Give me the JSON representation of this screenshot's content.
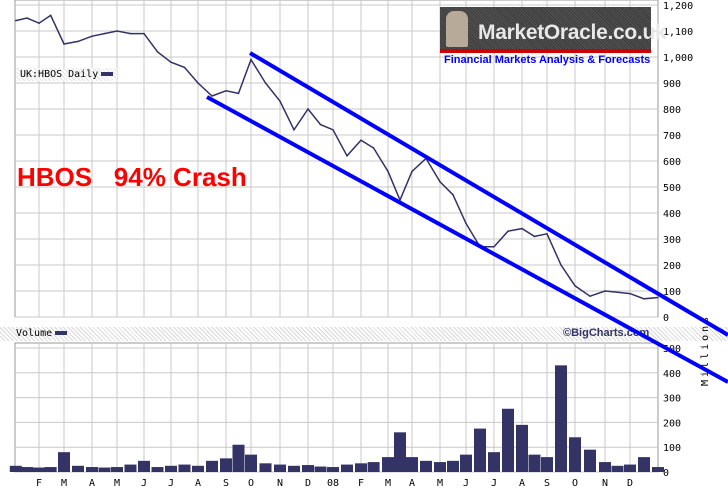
{
  "headline": "HBOS   94% Crash",
  "logo": {
    "name": "MarketOracle.co.uk",
    "tagline": "Financial Markets Analysis & Forecasts"
  },
  "credit": "©BigCharts.com",
  "colors": {
    "price_line": "#333366",
    "volume_bars": "#333366",
    "channel_lines": "#0000ff",
    "headline": "#ff0000",
    "grid": "#c8c8c8"
  },
  "chart_data": [
    {
      "type": "line",
      "legend": "UK:HBOS Daily",
      "y_ticks": [
        "1,200",
        "1,100",
        "1,000",
        "900",
        "800",
        "700",
        "600",
        "500",
        "400",
        "300",
        "200",
        "100",
        "0"
      ],
      "ylim": [
        0,
        1200
      ],
      "grid": true,
      "x": [
        "2007-01-02",
        "2007-01-16",
        "2007-02-01",
        "2007-02-15",
        "2007-03-01",
        "2007-03-16",
        "2007-04-01",
        "2007-04-16",
        "2007-05-01",
        "2007-05-16",
        "2007-06-01",
        "2007-06-16",
        "2007-07-01",
        "2007-07-16",
        "2007-08-01",
        "2007-08-16",
        "2007-09-01",
        "2007-09-16",
        "2007-10-01",
        "2007-10-16",
        "2007-11-01",
        "2007-11-16",
        "2007-12-01",
        "2007-12-16",
        "2008-01-01",
        "2008-01-16",
        "2008-02-01",
        "2008-02-15",
        "2008-03-01",
        "2008-03-16",
        "2008-04-01",
        "2008-04-16",
        "2008-05-01",
        "2008-05-16",
        "2008-06-01",
        "2008-06-16",
        "2008-07-01",
        "2008-07-16",
        "2008-08-01",
        "2008-08-16",
        "2008-09-01",
        "2008-09-16",
        "2008-10-01",
        "2008-10-16",
        "2008-11-01",
        "2008-11-16",
        "2008-12-01",
        "2008-12-16",
        "2008-12-31"
      ],
      "values": [
        1140,
        1150,
        1130,
        1160,
        1050,
        1060,
        1080,
        1090,
        1100,
        1090,
        1090,
        1020,
        980,
        960,
        900,
        850,
        870,
        860,
        990,
        900,
        830,
        720,
        800,
        740,
        720,
        620,
        680,
        650,
        560,
        450,
        560,
        610,
        520,
        470,
        360,
        270,
        270,
        330,
        340,
        310,
        320,
        200,
        120,
        80,
        100,
        95,
        90,
        70,
        75
      ]
    },
    {
      "type": "bar",
      "legend": "Volume",
      "ylabel": "Millions",
      "y_ticks": [
        "500",
        "400",
        "300",
        "200",
        "100",
        "0"
      ],
      "ylim": [
        0,
        500
      ],
      "grid": true,
      "values": [
        25,
        20,
        18,
        20,
        80,
        25,
        20,
        18,
        20,
        30,
        45,
        20,
        25,
        30,
        25,
        45,
        55,
        110,
        70,
        35,
        30,
        25,
        28,
        22,
        20,
        30,
        35,
        40,
        60,
        160,
        60,
        45,
        40,
        45,
        70,
        175,
        80,
        255,
        190,
        70,
        60,
        430,
        140,
        90,
        40,
        25,
        30,
        60,
        20
      ]
    }
  ],
  "x_axis_labels": [
    "F",
    "M",
    "A",
    "M",
    "J",
    "J",
    "A",
    "S",
    "O",
    "N",
    "D",
    "08",
    "F",
    "M",
    "A",
    "M",
    "J",
    "J",
    "A",
    "S",
    "O",
    "N",
    "D"
  ]
}
